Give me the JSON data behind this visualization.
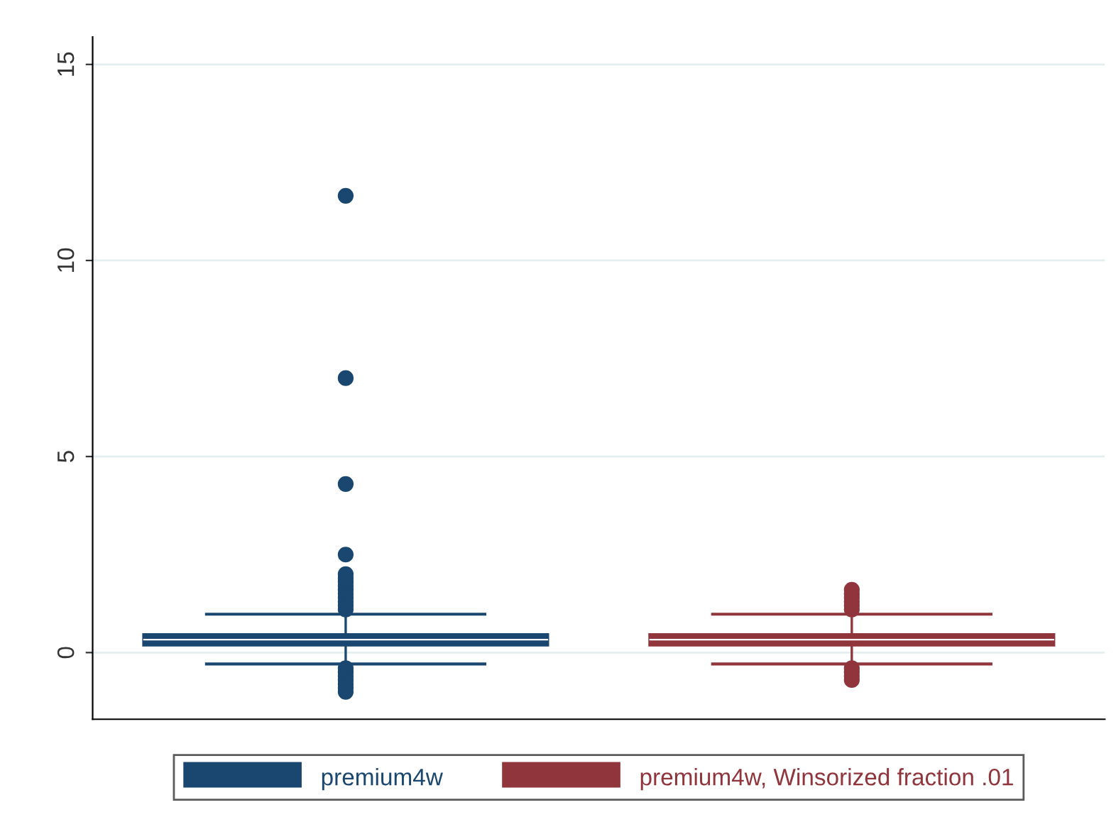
{
  "chart_data": {
    "type": "box",
    "categories": [
      null,
      null
    ],
    "ylim": [
      -1.7,
      15.7
    ],
    "yticks": [
      0,
      5,
      10,
      15
    ],
    "grid": "y",
    "legend": "bottom",
    "marker": "circle",
    "series": [
      {
        "name": "premium4w",
        "color": "#1a476f",
        "boxes": [
          {
            "low": -0.29,
            "q1": 0.18,
            "median": 0.33,
            "q3": 0.47,
            "high": 0.98,
            "outliers": [
              1.1,
              1.2,
              1.3,
              1.4,
              1.5,
              1.6,
              1.7,
              1.8,
              1.9,
              2.0,
              2.5,
              4.3,
              7.0,
              11.65,
              -0.4,
              -0.5,
              -0.6,
              -0.7,
              -0.8,
              -0.9,
              -1.0
            ]
          },
          null
        ]
      },
      {
        "name": "premium4w, Winsorized fraction .01",
        "color": "#90353b",
        "boxes": [
          null,
          {
            "low": -0.29,
            "q1": 0.18,
            "median": 0.33,
            "q3": 0.47,
            "high": 0.98,
            "outliers": [
              1.1,
              1.2,
              1.3,
              1.4,
              1.5,
              1.6,
              -0.4,
              -0.5,
              -0.6,
              -0.7
            ]
          }
        ]
      }
    ]
  }
}
